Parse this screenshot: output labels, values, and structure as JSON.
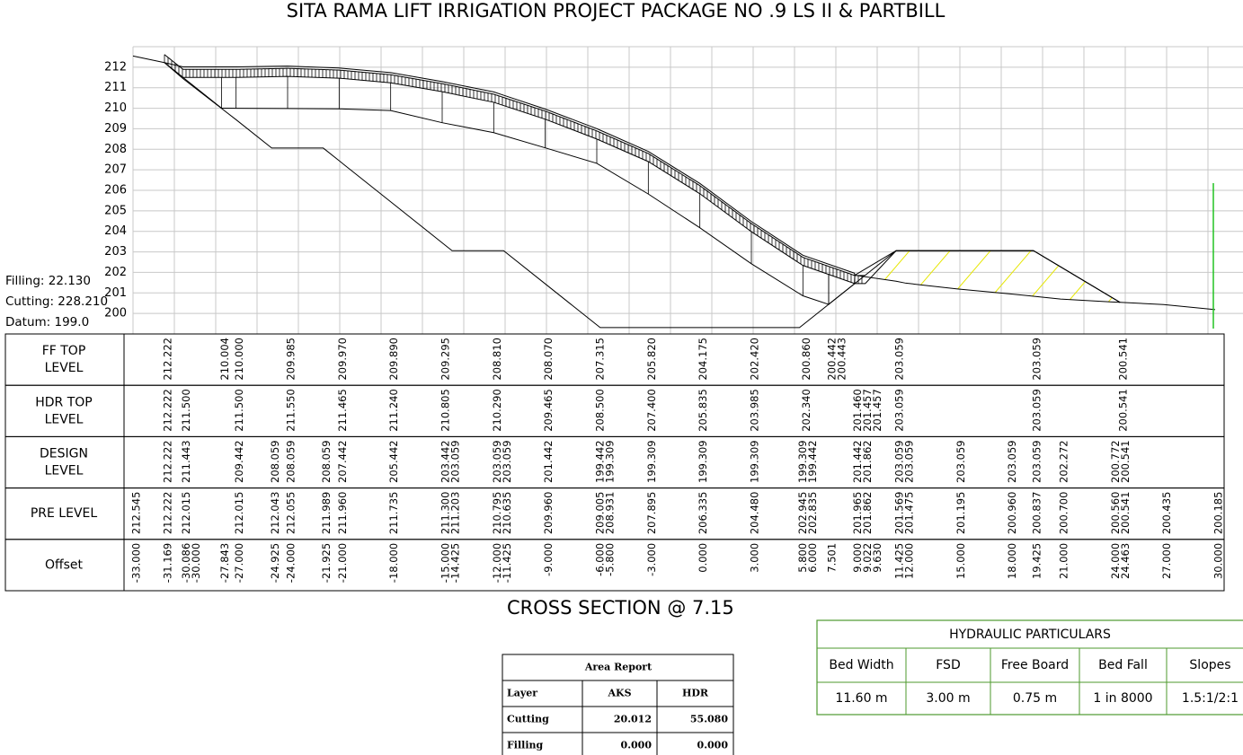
{
  "title": "SITA RAMA LIFT IRRIGATION PROJECT PACKAGE NO .9 LS II & PARTBILL",
  "profile": {
    "ylim": [
      199,
      213
    ],
    "yticks": [
      200,
      201,
      202,
      203,
      204,
      205,
      206,
      207,
      208,
      209,
      210,
      211,
      212
    ]
  },
  "summary": [
    "Filling: 22.130",
    "Cutting: 228.210",
    "Datum: 199.0"
  ],
  "bands": [
    {
      "name": [
        "FF  TOP",
        "LEVEL"
      ],
      "points": [
        {
          "offset": -31.169,
          "value": 212.222,
          "label": "212.222"
        },
        {
          "offset": -27.843,
          "value": 210.004,
          "label": "210.004"
        },
        {
          "offset": -27,
          "value": 210.0,
          "label": "210.000"
        },
        {
          "offset": -24,
          "value": 209.985,
          "label": "209.985"
        },
        {
          "offset": -21,
          "value": 209.97,
          "label": "209.970"
        },
        {
          "offset": -18,
          "value": 209.89,
          "label": "209.890"
        },
        {
          "offset": -15,
          "value": 209.295,
          "label": "209.295"
        },
        {
          "offset": -12,
          "value": 208.81,
          "label": "208.810"
        },
        {
          "offset": -9,
          "value": 208.07,
          "label": "208.070"
        },
        {
          "offset": -6,
          "value": 207.315,
          "label": "207.315"
        },
        {
          "offset": -3,
          "value": 205.82,
          "label": "205.820"
        },
        {
          "offset": 0,
          "value": 204.175,
          "label": "204.175"
        },
        {
          "offset": 3,
          "value": 202.42,
          "label": "202.420"
        },
        {
          "offset": 6,
          "value": 200.86,
          "label": "200.860"
        },
        {
          "offset": 7.501,
          "value": 200.442,
          "label": "200.442"
        },
        {
          "offset": 7.501,
          "value": 200.443,
          "label": "200.443"
        },
        {
          "offset": 11.425,
          "value": 203.059,
          "label": "203.059"
        },
        {
          "offset": 19.425,
          "value": 203.059,
          "label": "203.059"
        },
        {
          "offset": 24.463,
          "value": 200.541,
          "label": "200.541"
        }
      ]
    },
    {
      "name": [
        "HDR  TOP",
        "LEVEL"
      ],
      "points": [
        {
          "offset": -31.169,
          "value": 212.222,
          "label": "212.222"
        },
        {
          "offset": -30.086,
          "value": 211.5,
          "label": "211.500"
        },
        {
          "offset": -27,
          "value": 211.5,
          "label": "211.500"
        },
        {
          "offset": -24,
          "value": 211.55,
          "label": "211.550"
        },
        {
          "offset": -21,
          "value": 211.465,
          "label": "211.465"
        },
        {
          "offset": -18,
          "value": 211.24,
          "label": "211.240"
        },
        {
          "offset": -15,
          "value": 210.805,
          "label": "210.805"
        },
        {
          "offset": -12,
          "value": 210.29,
          "label": "210.290"
        },
        {
          "offset": -9,
          "value": 209.465,
          "label": "209.465"
        },
        {
          "offset": -6,
          "value": 208.5,
          "label": "208.500"
        },
        {
          "offset": -3,
          "value": 207.4,
          "label": "207.400"
        },
        {
          "offset": 0,
          "value": 205.835,
          "label": "205.835"
        },
        {
          "offset": 3,
          "value": 203.985,
          "label": "203.985"
        },
        {
          "offset": 6,
          "value": 202.34,
          "label": "202.340"
        },
        {
          "offset": 9,
          "value": 201.46,
          "label": "201.460"
        },
        {
          "offset": 9.022,
          "value": 201.457,
          "label": "201.457"
        },
        {
          "offset": 9.63,
          "value": 201.457,
          "label": "201.457"
        },
        {
          "offset": 11.425,
          "value": 203.059,
          "label": "203.059"
        },
        {
          "offset": 19.425,
          "value": 203.059,
          "label": "203.059"
        },
        {
          "offset": 24.463,
          "value": 200.541,
          "label": "200.541"
        }
      ]
    },
    {
      "name": [
        "DESIGN",
        "LEVEL"
      ],
      "points": [
        {
          "offset": -31.169,
          "value": 212.222,
          "label": "212.222"
        },
        {
          "offset": -30.086,
          "value": 211.443,
          "label": "211.443"
        },
        {
          "offset": -27,
          "value": 209.442,
          "label": "209.442"
        },
        {
          "offset": -24.925,
          "value": 208.059,
          "label": "208.059"
        },
        {
          "offset": -24,
          "value": 208.059,
          "label": "208.059"
        },
        {
          "offset": -21.925,
          "value": 208.059,
          "label": "208.059"
        },
        {
          "offset": -21,
          "value": 207.442,
          "label": "207.442"
        },
        {
          "offset": -18,
          "value": 205.442,
          "label": "205.442"
        },
        {
          "offset": -15,
          "value": 203.442,
          "label": "203.442"
        },
        {
          "offset": -14.425,
          "value": 203.059,
          "label": "203.059"
        },
        {
          "offset": -12,
          "value": 203.059,
          "label": "203.059"
        },
        {
          "offset": -11.425,
          "value": 203.059,
          "label": "203.059"
        },
        {
          "offset": -9,
          "value": 201.442,
          "label": "201.442"
        },
        {
          "offset": -6,
          "value": 199.442,
          "label": "199.442"
        },
        {
          "offset": -5.8,
          "value": 199.309,
          "label": "199.309"
        },
        {
          "offset": -3,
          "value": 199.309,
          "label": "199.309"
        },
        {
          "offset": 0,
          "value": 199.309,
          "label": "199.309"
        },
        {
          "offset": 3,
          "value": 199.309,
          "label": "199.309"
        },
        {
          "offset": 5.8,
          "value": 199.309,
          "label": "199.309"
        },
        {
          "offset": 6,
          "value": 199.442,
          "label": "199.442"
        },
        {
          "offset": 9,
          "value": 201.442,
          "label": "201.442"
        },
        {
          "offset": 9.022,
          "value": 201.862,
          "label": "201.862"
        },
        {
          "offset": 11.425,
          "value": 203.059,
          "label": "203.059"
        },
        {
          "offset": 12,
          "value": 203.059,
          "label": "203.059"
        },
        {
          "offset": 15,
          "value": 203.059,
          "label": "203.059"
        },
        {
          "offset": 18,
          "value": 203.059,
          "label": "203.059"
        },
        {
          "offset": 19.425,
          "value": 203.059,
          "label": "203.059"
        },
        {
          "offset": 21,
          "value": 202.272,
          "label": "202.272"
        },
        {
          "offset": 24,
          "value": 200.772,
          "label": "200.772"
        },
        {
          "offset": 24.463,
          "value": 200.541,
          "label": "200.541"
        }
      ]
    },
    {
      "name": [
        "PRE LEVEL"
      ],
      "points": [
        {
          "offset": -33,
          "value": 212.545,
          "label": "212.545"
        },
        {
          "offset": -31.169,
          "value": 212.222,
          "label": "212.222"
        },
        {
          "offset": -30.086,
          "value": 212.015,
          "label": "212.015"
        },
        {
          "offset": -27,
          "value": 212.015,
          "label": "212.015"
        },
        {
          "offset": -24.925,
          "value": 212.043,
          "label": "212.043"
        },
        {
          "offset": -24,
          "value": 212.055,
          "label": "212.055"
        },
        {
          "offset": -21.925,
          "value": 211.989,
          "label": "211.989"
        },
        {
          "offset": -21,
          "value": 211.96,
          "label": "211.960"
        },
        {
          "offset": -18,
          "value": 211.735,
          "label": "211.735"
        },
        {
          "offset": -15,
          "value": 211.3,
          "label": "211.300"
        },
        {
          "offset": -14.425,
          "value": 211.203,
          "label": "211.203"
        },
        {
          "offset": -12,
          "value": 210.795,
          "label": "210.795"
        },
        {
          "offset": -11.425,
          "value": 210.635,
          "label": "210.635"
        },
        {
          "offset": -9,
          "value": 209.96,
          "label": "209.960"
        },
        {
          "offset": -6,
          "value": 209.005,
          "label": "209.005"
        },
        {
          "offset": -5.8,
          "value": 208.931,
          "label": "208.931"
        },
        {
          "offset": -3,
          "value": 207.895,
          "label": "207.895"
        },
        {
          "offset": 0,
          "value": 206.335,
          "label": "206.335"
        },
        {
          "offset": 3,
          "value": 204.48,
          "label": "204.480"
        },
        {
          "offset": 5.8,
          "value": 202.945,
          "label": "202.945"
        },
        {
          "offset": 6,
          "value": 202.835,
          "label": "202.835"
        },
        {
          "offset": 9,
          "value": 201.965,
          "label": "201.965"
        },
        {
          "offset": 9.022,
          "value": 201.862,
          "label": "201.862"
        },
        {
          "offset": 11.425,
          "value": 201.569,
          "label": "201.569"
        },
        {
          "offset": 12,
          "value": 201.475,
          "label": "201.475"
        },
        {
          "offset": 15,
          "value": 201.195,
          "label": "201.195"
        },
        {
          "offset": 18,
          "value": 200.96,
          "label": "200.960"
        },
        {
          "offset": 19.425,
          "value": 200.837,
          "label": "200.837"
        },
        {
          "offset": 21,
          "value": 200.7,
          "label": "200.700"
        },
        {
          "offset": 24,
          "value": 200.56,
          "label": "200.560"
        },
        {
          "offset": 24.463,
          "value": 200.541,
          "label": "200.541"
        },
        {
          "offset": 27,
          "value": 200.435,
          "label": "200.435"
        },
        {
          "offset": 30,
          "value": 200.185,
          "label": "200.185"
        }
      ]
    },
    {
      "name": [
        "Offset"
      ],
      "points": [
        {
          "offset": -33,
          "label": "-33.000"
        },
        {
          "offset": -31.169,
          "label": "-31.169"
        },
        {
          "offset": -30.086,
          "label": "-30.086"
        },
        {
          "offset": -30,
          "label": "-30.000"
        },
        {
          "offset": -27.843,
          "label": "-27.843"
        },
        {
          "offset": -27,
          "label": "-27.000"
        },
        {
          "offset": -24.925,
          "label": "-24.925"
        },
        {
          "offset": -24,
          "label": "-24.000"
        },
        {
          "offset": -21.925,
          "label": "-21.925"
        },
        {
          "offset": -21,
          "label": "-21.000"
        },
        {
          "offset": -18,
          "label": "-18.000"
        },
        {
          "offset": -15,
          "label": "-15.000"
        },
        {
          "offset": -14.425,
          "label": "-14.425"
        },
        {
          "offset": -12,
          "label": "-12.000"
        },
        {
          "offset": -11.425,
          "label": "-11.425"
        },
        {
          "offset": -9,
          "label": "-9.000"
        },
        {
          "offset": -6,
          "label": "-6.000"
        },
        {
          "offset": -5.8,
          "label": "-5.800"
        },
        {
          "offset": -3,
          "label": "-3.000"
        },
        {
          "offset": 0,
          "label": "0.000"
        },
        {
          "offset": 3,
          "label": "3.000"
        },
        {
          "offset": 5.8,
          "label": "5.800"
        },
        {
          "offset": 6,
          "label": "6.000"
        },
        {
          "offset": 7.501,
          "label": "7.501"
        },
        {
          "offset": 9,
          "label": "9.000"
        },
        {
          "offset": 9.022,
          "label": "9.022"
        },
        {
          "offset": 9.63,
          "label": "9.630"
        },
        {
          "offset": 11.425,
          "label": "11.425"
        },
        {
          "offset": 12,
          "label": "12.000"
        },
        {
          "offset": 15,
          "label": "15.000"
        },
        {
          "offset": 18,
          "label": "18.000"
        },
        {
          "offset": 19.425,
          "label": "19.425"
        },
        {
          "offset": 21,
          "label": "21.000"
        },
        {
          "offset": 24,
          "label": "24.000"
        },
        {
          "offset": 24.463,
          "label": "24.463"
        },
        {
          "offset": 27,
          "label": "27.000"
        },
        {
          "offset": 30,
          "label": "30.000"
        }
      ]
    }
  ],
  "section_label": "CROSS SECTION @ 7.15",
  "hydraulic": {
    "title": "HYDRAULIC  PARTICULARS",
    "headers": [
      "Bed Width",
      "FSD",
      "Free Board",
      "Bed Fall",
      "Slopes"
    ],
    "values": [
      "11.60 m",
      "3.00 m",
      "0.75 m",
      "1 in 8000",
      "1.5:1/2:1"
    ]
  },
  "area_report": {
    "title": "Area Report",
    "headers": [
      "Layer",
      "AKS",
      "HDR"
    ],
    "rows": [
      [
        "Cutting",
        "20.012",
        "55.080"
      ],
      [
        "Filling",
        "0.000",
        "0.000"
      ]
    ]
  }
}
